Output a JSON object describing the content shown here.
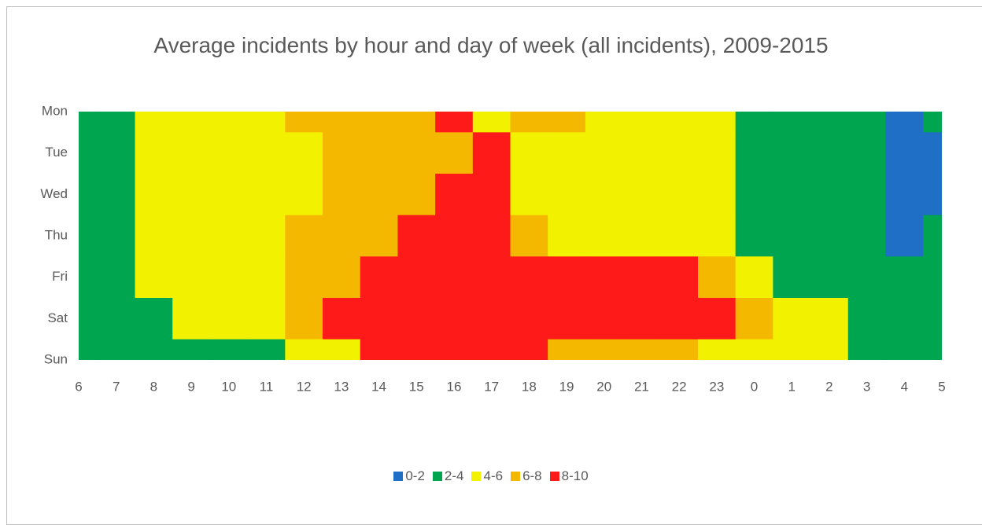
{
  "chart_data": {
    "type": "surface",
    "title": "Average incidents by hour and day of week (all incidents), 2009-2015",
    "categories": [
      "6",
      "7",
      "8",
      "9",
      "10",
      "11",
      "12",
      "13",
      "14",
      "15",
      "16",
      "17",
      "18",
      "19",
      "20",
      "21",
      "22",
      "23",
      "0",
      "1",
      "2",
      "3",
      "4",
      "5"
    ],
    "y_categories": [
      "Mon",
      "Tue",
      "Wed",
      "Thu",
      "Fri",
      "Sat",
      "Sun"
    ],
    "zticks": [
      0,
      2,
      4,
      6,
      8,
      10
    ],
    "series": [
      {
        "name": "0-2",
        "color": "#1f6fc6"
      },
      {
        "name": "2-4",
        "color": "#00a550"
      },
      {
        "name": "4-6",
        "color": "#f2f200"
      },
      {
        "name": "6-8",
        "color": "#f5b800"
      },
      {
        "name": "8-10",
        "color": "#ff1a1a"
      }
    ],
    "values": [
      [
        3,
        3,
        5,
        5,
        5,
        6,
        7,
        7,
        7,
        7,
        9,
        6,
        7,
        7,
        6,
        5,
        5,
        5,
        4,
        3,
        3,
        3,
        1.5,
        3
      ],
      [
        3,
        3,
        5,
        5,
        5,
        5,
        6,
        7,
        7,
        7,
        7,
        9,
        6,
        6,
        5,
        5,
        5,
        5,
        3,
        3,
        3,
        3,
        1.5,
        1.5
      ],
      [
        3,
        3,
        5,
        5,
        5,
        5,
        6,
        7,
        7,
        7,
        9,
        8.5,
        6,
        5,
        5,
        5,
        5,
        5,
        3.5,
        3,
        3,
        3,
        1.5,
        1.5
      ],
      [
        3,
        3,
        4.5,
        5,
        5,
        6,
        7,
        7,
        7,
        9,
        9,
        8.5,
        8,
        6,
        6,
        6,
        6,
        5,
        4,
        3,
        3,
        3,
        2,
        3
      ],
      [
        3,
        3,
        5,
        5,
        5,
        6,
        7,
        7,
        8.5,
        9,
        9,
        9,
        9,
        8.5,
        8.5,
        8.5,
        8.5,
        8,
        5,
        4,
        3,
        3,
        3,
        3
      ],
      [
        3,
        3,
        4,
        5,
        5,
        6,
        7,
        9,
        9,
        9,
        9,
        9,
        9,
        9,
        9,
        9,
        9,
        9,
        7,
        6,
        5,
        4,
        3,
        3
      ],
      [
        3,
        3,
        3,
        3,
        4,
        4,
        4.5,
        5,
        8.5,
        9,
        9,
        8.5,
        8.5,
        7,
        7,
        7,
        6.5,
        6,
        5,
        6,
        5,
        4,
        3,
        3
      ]
    ]
  }
}
